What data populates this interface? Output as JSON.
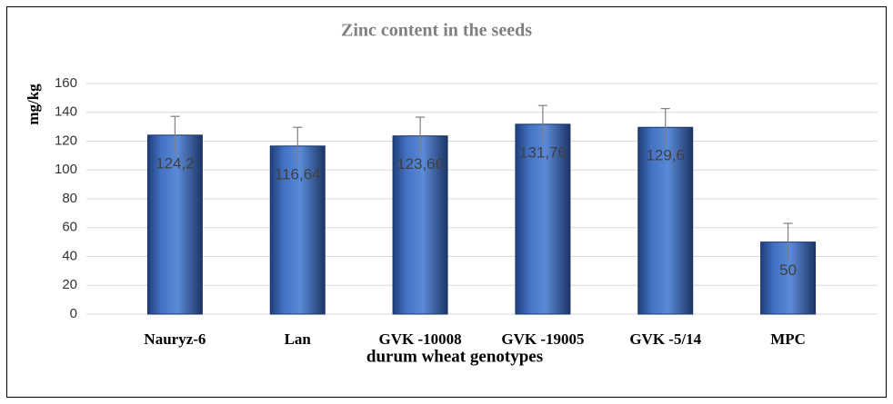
{
  "chart_data": {
    "type": "bar",
    "title": "Zinc content in the seeds",
    "x_label": "durum wheat genotypes",
    "y_label": "mg/kg",
    "categories": [
      "Nauryz-6",
      "Lan",
      "GVK -10008",
      "GVK -19005",
      "GVK -5/14",
      "MPC"
    ],
    "values": [
      124.2,
      116.64,
      123.66,
      131.76,
      129.6,
      50
    ],
    "value_labels": [
      "124,2",
      "116,64",
      "123,66",
      "131,76",
      "129,6",
      "50"
    ],
    "errors": [
      13,
      13,
      13,
      13,
      13,
      13
    ],
    "color": "#4472c4",
    "ylim": [
      0,
      160
    ],
    "yticks": [
      0,
      20,
      40,
      60,
      80,
      100,
      120,
      140,
      160
    ],
    "grid": true
  }
}
